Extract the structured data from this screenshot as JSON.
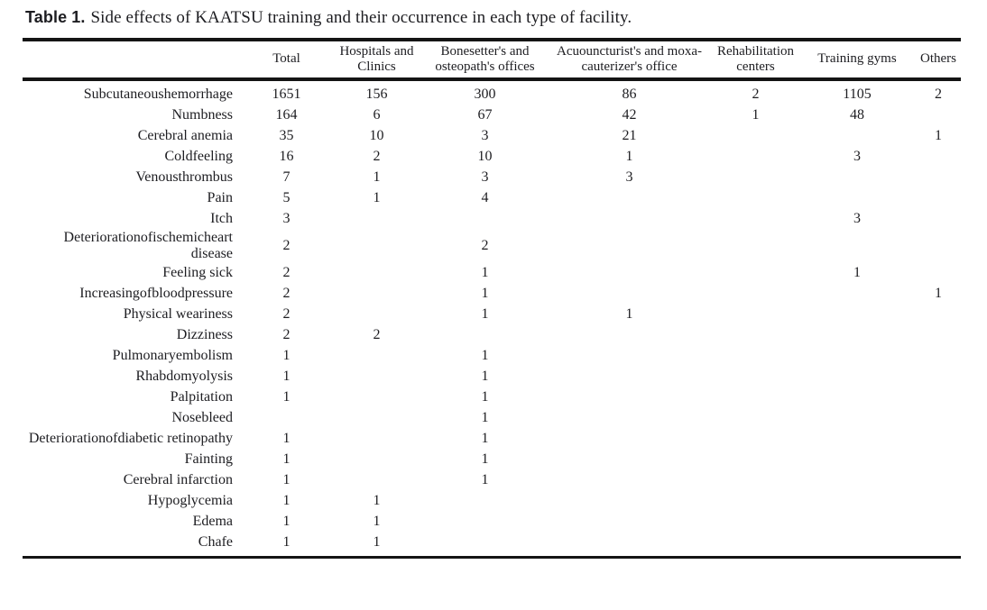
{
  "colors": {
    "background": "#ffffff",
    "text": "#1d1d21",
    "rule": "#141414"
  },
  "title": {
    "label": "Table 1.",
    "text": "Side effects of KAATSU training and their occurrence in each type of facility."
  },
  "table": {
    "columns": [
      "",
      "Total",
      "Hospitals and Clinics",
      "Bonesetter's and osteopath's offices",
      "Acuouncturist's and moxa-cauterizer's office",
      "Rehabilitation centers",
      "Training gyms",
      "Others"
    ],
    "rows": [
      {
        "label": "Subcutaneoushemorrhage",
        "values": [
          "1651",
          "156",
          "300",
          "86",
          "2",
          "1105",
          "2"
        ]
      },
      {
        "label": "Numbness",
        "values": [
          "164",
          "6",
          "67",
          "42",
          "1",
          "48",
          ""
        ]
      },
      {
        "label": "Cerebral anemia",
        "values": [
          "35",
          "10",
          "3",
          "21",
          "",
          "",
          "1"
        ]
      },
      {
        "label": "Coldfeeling",
        "values": [
          "16",
          "2",
          "10",
          "1",
          "",
          "3",
          ""
        ]
      },
      {
        "label": "Venousthrombus",
        "values": [
          "7",
          "1",
          "3",
          "3",
          "",
          "",
          ""
        ]
      },
      {
        "label": "Pain",
        "values": [
          "5",
          "1",
          "4",
          "",
          "",
          "",
          ""
        ]
      },
      {
        "label": "Itch",
        "values": [
          "3",
          "",
          "",
          "",
          "",
          "3",
          ""
        ]
      },
      {
        "label": "Deteriorationofischemicheart disease",
        "values": [
          "2",
          "",
          "2",
          "",
          "",
          "",
          ""
        ]
      },
      {
        "label": "Feeling sick",
        "values": [
          "2",
          "",
          "1",
          "",
          "",
          "1",
          ""
        ]
      },
      {
        "label": "Increasingofbloodpressure",
        "values": [
          "2",
          "",
          "1",
          "",
          "",
          "",
          "1"
        ]
      },
      {
        "label": "Physical weariness",
        "values": [
          "2",
          "",
          "1",
          "1",
          "",
          "",
          ""
        ]
      },
      {
        "label": "Dizziness",
        "values": [
          "2",
          "2",
          "",
          "",
          "",
          "",
          ""
        ]
      },
      {
        "label": "Pulmonaryembolism",
        "values": [
          "1",
          "",
          "1",
          "",
          "",
          "",
          ""
        ]
      },
      {
        "label": "Rhabdomyolysis",
        "values": [
          "1",
          "",
          "1",
          "",
          "",
          "",
          ""
        ]
      },
      {
        "label": "Palpitation",
        "values": [
          "1",
          "",
          "1",
          "",
          "",
          "",
          ""
        ]
      },
      {
        "label": "Nosebleed",
        "values": [
          "",
          "",
          "1",
          "",
          "",
          "",
          ""
        ]
      },
      {
        "label": "Deteriorationofdiabetic retinopathy",
        "values": [
          "1",
          "",
          "1",
          "",
          "",
          "",
          ""
        ]
      },
      {
        "label": "Fainting",
        "values": [
          "1",
          "",
          "1",
          "",
          "",
          "",
          ""
        ]
      },
      {
        "label": "Cerebral infarction",
        "values": [
          "1",
          "",
          "1",
          "",
          "",
          "",
          ""
        ]
      },
      {
        "label": "Hypoglycemia",
        "values": [
          "1",
          "1",
          "",
          "",
          "",
          "",
          ""
        ]
      },
      {
        "label": "Edema",
        "values": [
          "1",
          "1",
          "",
          "",
          "",
          "",
          ""
        ]
      },
      {
        "label": "Chafe",
        "values": [
          "1",
          "1",
          "",
          "",
          "",
          "",
          ""
        ]
      }
    ]
  }
}
